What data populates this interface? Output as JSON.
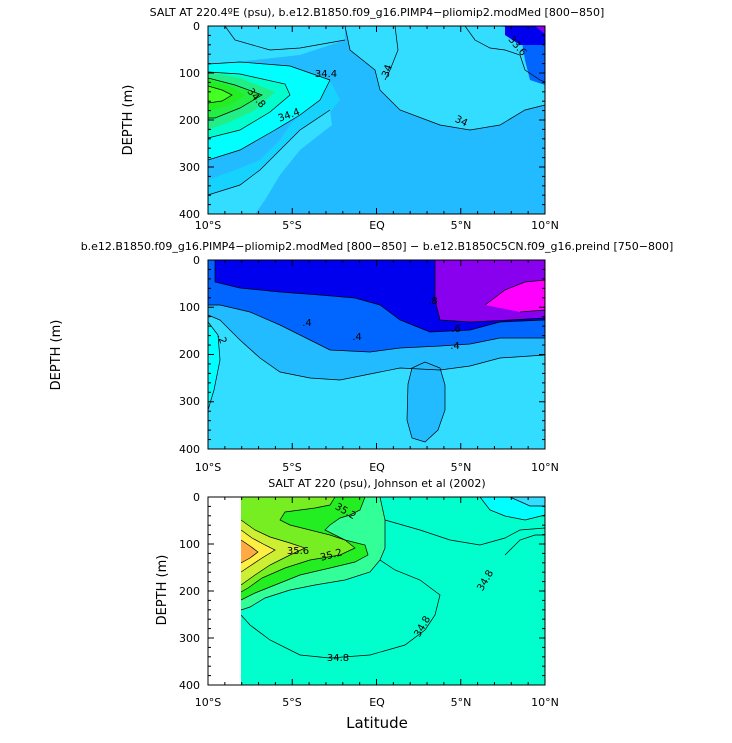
{
  "figure": {
    "xlabel": "Latitude",
    "ylabel": "DEPTH (m)",
    "xticks": [
      "10°S",
      "5°S",
      "EQ",
      "5°N",
      "10°N"
    ],
    "yticks": [
      "0",
      "100",
      "200",
      "300",
      "400"
    ]
  },
  "chart_data": [
    {
      "type": "heatmap",
      "title": "SALT AT 220.4ºE (psu), b.e12.B1850.f09_g16.PIMP4−pliomip2.modMed [800−850]",
      "xlabel": "",
      "ylabel": "DEPTH (m)",
      "xlim": [
        -10,
        10
      ],
      "ylim": [
        400,
        0
      ],
      "contour_labels": [
        "34.4",
        "34",
        "33.6",
        "34.8",
        "34.4",
        "34"
      ]
    },
    {
      "type": "heatmap",
      "title": "b.e12.B1850.f09_g16.PIMP4−pliomip2.modMed [800−850] − b.e12.B1850C5CN.f09_g16.preind [750−800]",
      "xlabel": "",
      "ylabel": "DEPTH (m)",
      "xlim": [
        -10,
        10
      ],
      "ylim": [
        400,
        0
      ],
      "contour_labels": [
        ".8",
        ".6",
        ".4",
        ".4",
        ".4",
        ".2"
      ]
    },
    {
      "type": "heatmap",
      "title": "SALT AT 220 (psu), Johnson et al (2002)",
      "xlabel": "Latitude",
      "ylabel": "DEPTH (m)",
      "xlim": [
        -10,
        10
      ],
      "ylim": [
        400,
        0
      ],
      "contour_labels": [
        "35.2",
        "35.6",
        "35.2",
        "34.8",
        "34.8",
        "34.8"
      ]
    }
  ],
  "colors": {
    "cyan": "#00ffff",
    "light_blue": "#33ddff",
    "sky": "#22bbff",
    "blue": "#0066ff",
    "deep_blue": "#0000ee",
    "purple": "#8800ee",
    "magenta": "#ff00ff",
    "aqua_green": "#00ffcc",
    "green": "#22ee22",
    "yellow": "#ffee44",
    "orange": "#ffaa44"
  }
}
